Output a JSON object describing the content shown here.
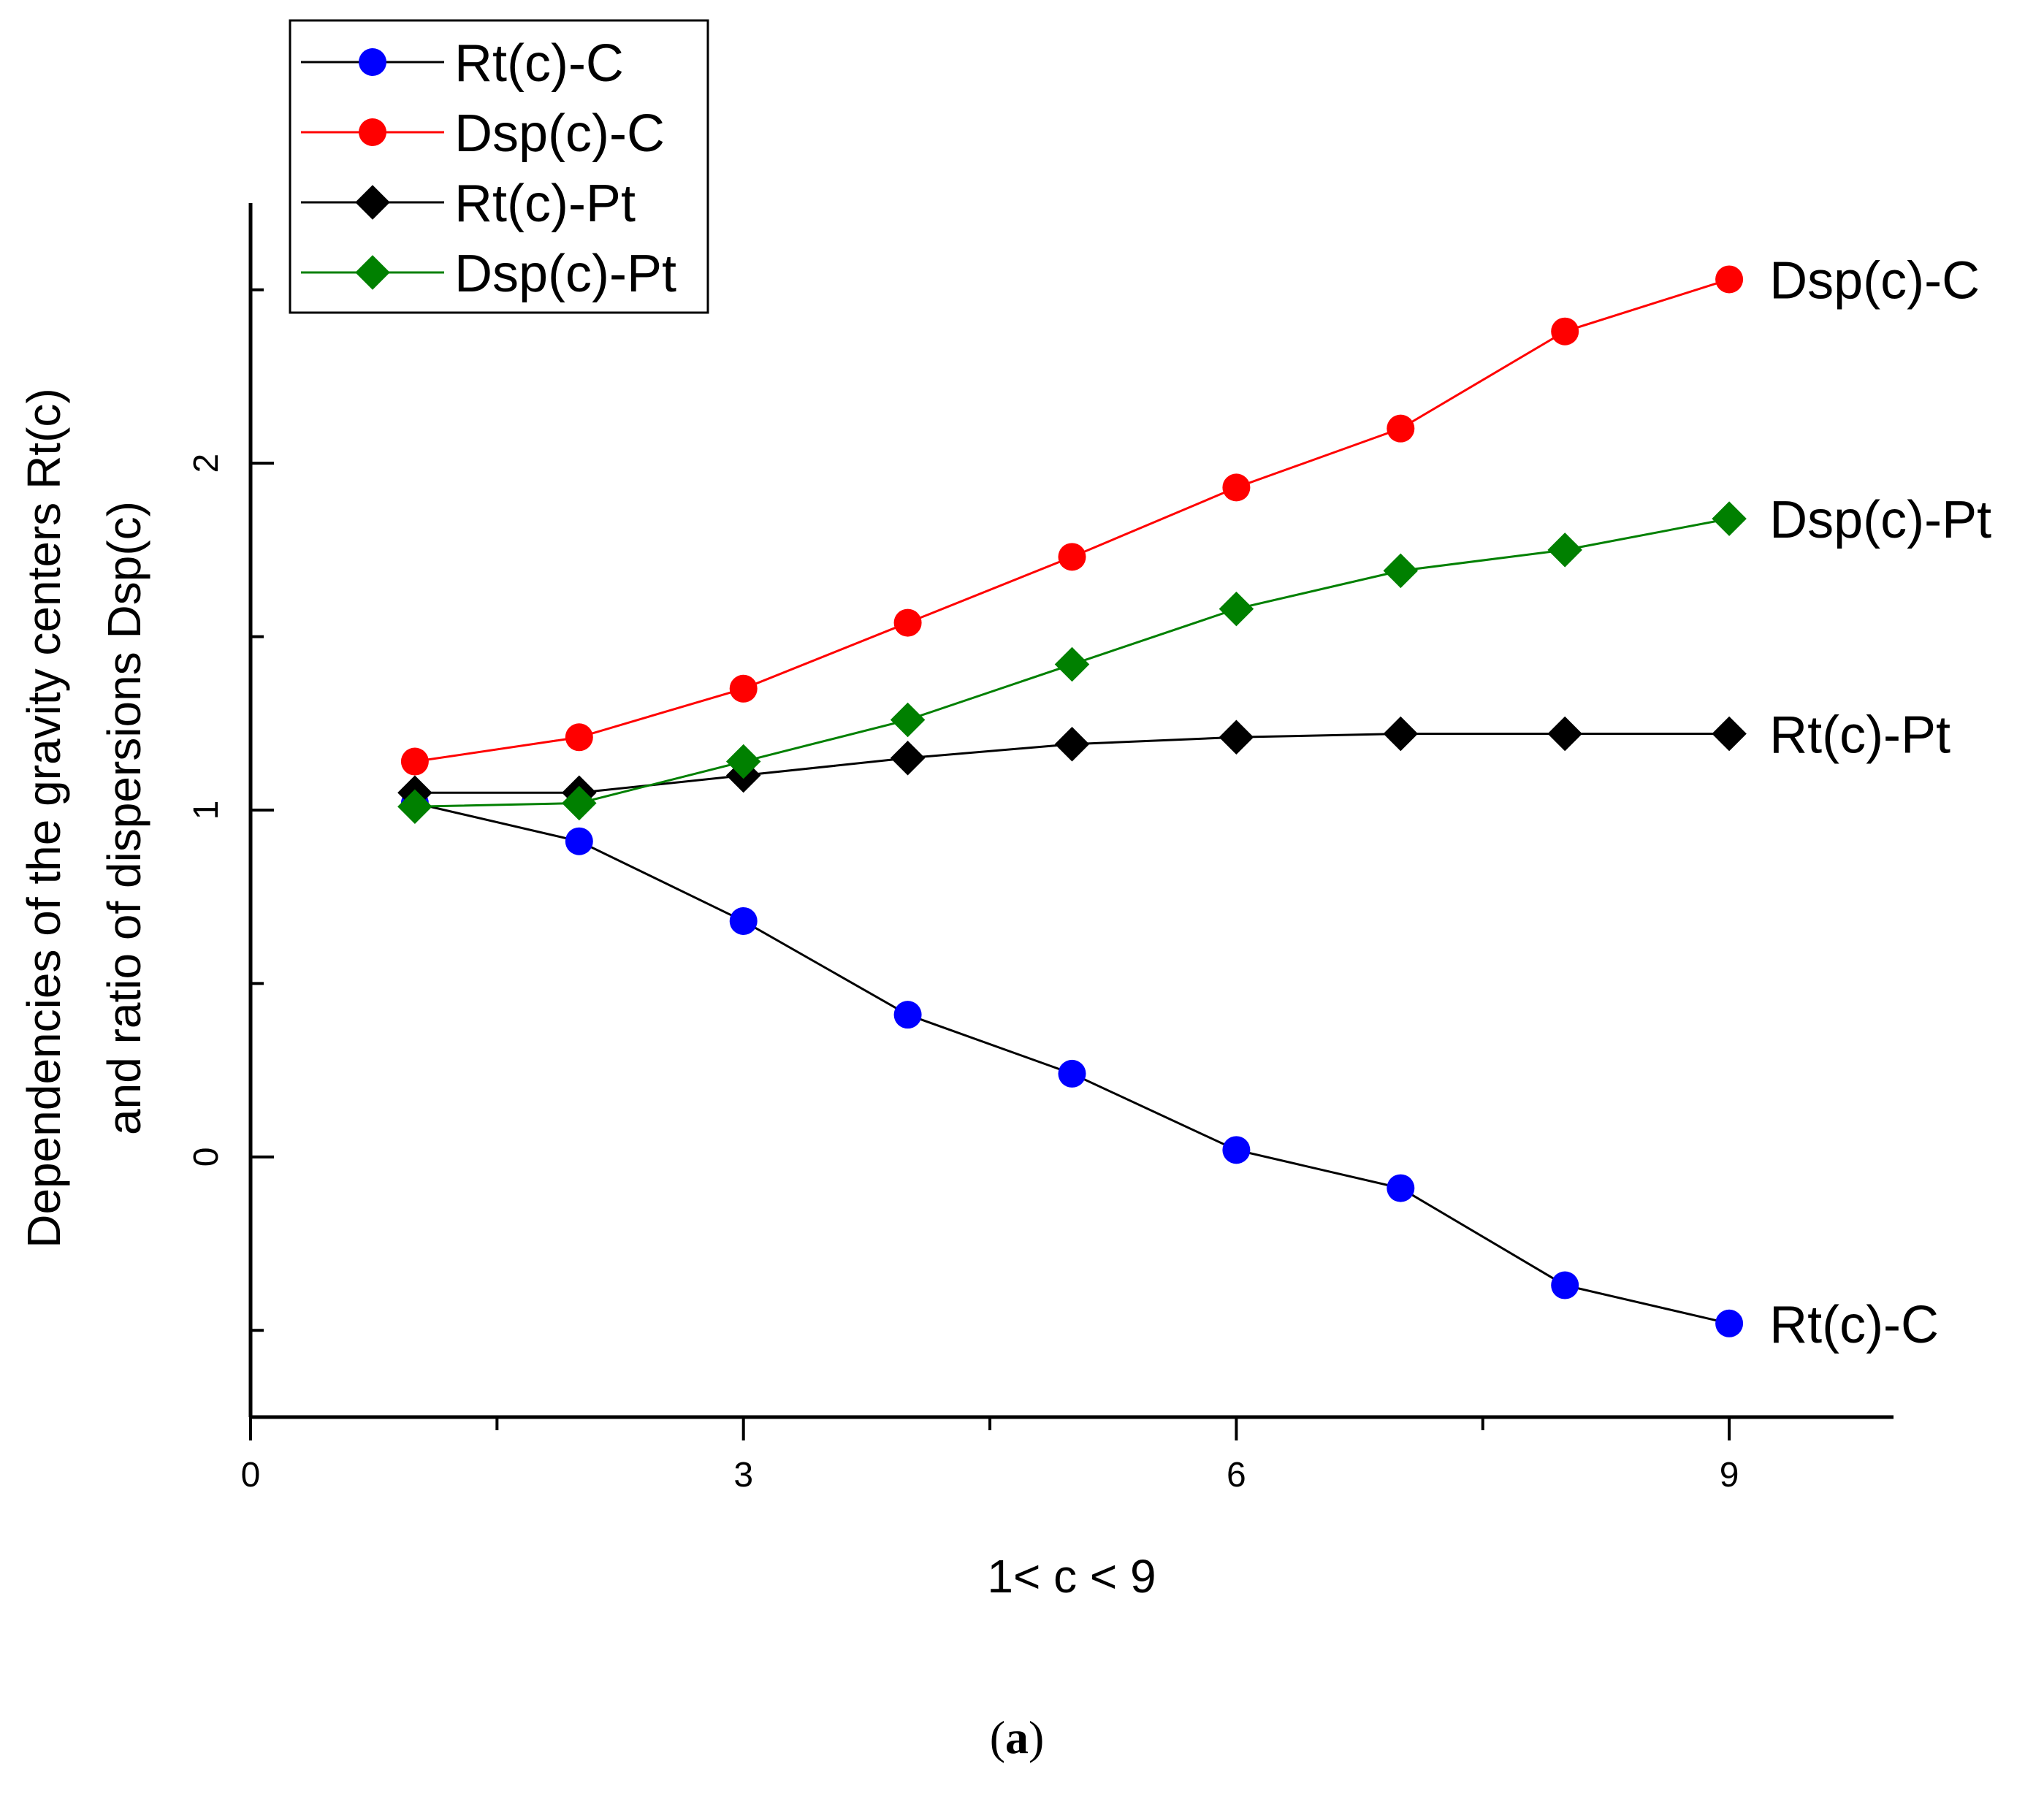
{
  "chart_data": {
    "type": "line",
    "title": "",
    "caption": {
      "open": "(",
      "letter": "a",
      "close": ")"
    },
    "xlabel": "1< c < 9",
    "ylabel_lines": [
      "Dependencies of the gravity centers Rt(c)",
      "and ratio of dispersions Dsp(c)"
    ],
    "xlim": [
      0,
      10
    ],
    "ylim": [
      -0.75,
      2.75
    ],
    "xticks": [
      0,
      3,
      6,
      9
    ],
    "xtick_labels": [
      "0",
      "3",
      "6",
      "9"
    ],
    "xticks_minor": [
      1.5,
      4.5,
      7.5
    ],
    "yticks": [
      0,
      1,
      2
    ],
    "ytick_labels": [
      "0",
      "1",
      "2"
    ],
    "yticks_minor": [
      -0.5,
      0.5,
      1.5,
      2.5
    ],
    "grid": false,
    "legend_position": "top-left",
    "x": [
      1,
      2,
      3,
      4,
      5,
      6,
      7,
      8,
      9
    ],
    "series": [
      {
        "name": "Rt(c)-C",
        "line_color": "#000000",
        "marker_color": "#0000FF",
        "marker": "circle",
        "values": [
          1.02,
          0.91,
          0.68,
          0.41,
          0.24,
          0.02,
          -0.09,
          -0.37,
          -0.48
        ],
        "end_label": "Rt(c)-C"
      },
      {
        "name": "Dsp(c)-C",
        "line_color": "#FF0000",
        "marker_color": "#FF0000",
        "marker": "circle",
        "values": [
          1.14,
          1.21,
          1.35,
          1.54,
          1.73,
          1.93,
          2.1,
          2.38,
          2.53
        ],
        "end_label": "Dsp(c)-C"
      },
      {
        "name": "Rt(c)-Pt",
        "line_color": "#000000",
        "marker_color": "#000000",
        "marker": "diamond",
        "values": [
          1.05,
          1.05,
          1.1,
          1.15,
          1.19,
          1.21,
          1.22,
          1.22,
          1.22
        ],
        "end_label": "Rt(c)-Pt"
      },
      {
        "name": "Dsp(c)-Pt",
        "line_color": "#008000",
        "marker_color": "#008000",
        "marker": "diamond",
        "values": [
          1.01,
          1.02,
          1.14,
          1.26,
          1.42,
          1.58,
          1.69,
          1.75,
          1.84
        ],
        "end_label": "Dsp(c)-Pt"
      }
    ]
  }
}
